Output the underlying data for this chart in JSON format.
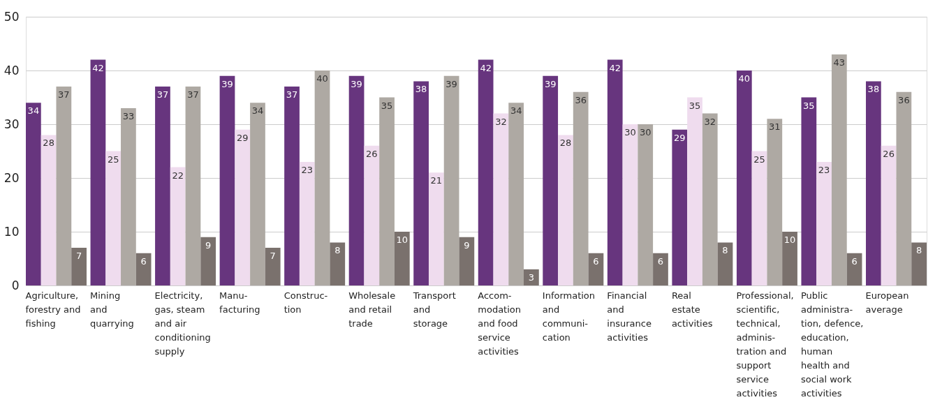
{
  "chart_data": {
    "type": "bar",
    "categories": [
      "Agriculture,\nforestry and\nfishing",
      "Mining\nand\nquarrying",
      "Electricity,\ngas, steam\nand air\nconditioning\nsupply",
      "Manu-\nfacturing",
      "Construc-\ntion",
      "Wholesale\nand retail\ntrade",
      "Transport\nand\nstorage",
      "Accom-\nmodation\nand food\nservice\nactivities",
      "Information\nand\ncommuni-\ncation",
      "Financial\nand\ninsurance\nactivities",
      "Real\nestate\nactivities",
      "Professional,\nscientific,\ntechnical,\nadminis-\ntration and\nsupport\nservice\nactivities",
      "Public\nadministra-\ntion, defence,\neducation,\nhuman\nhealth and\nsocial work\nactivities",
      "European\naverage"
    ],
    "series": [
      {
        "color": "#67357e",
        "values": [
          34,
          42,
          37,
          39,
          37,
          39,
          38,
          42,
          39,
          42,
          29,
          40,
          35,
          38
        ]
      },
      {
        "color": "#efdcee",
        "values": [
          28,
          25,
          22,
          29,
          23,
          26,
          21,
          32,
          28,
          30,
          35,
          25,
          23,
          26
        ]
      },
      {
        "color": "#aea9a3",
        "values": [
          37,
          33,
          37,
          34,
          40,
          35,
          39,
          34,
          36,
          30,
          32,
          31,
          43,
          36
        ]
      },
      {
        "color": "#7a716d",
        "values": [
          7,
          6,
          9,
          7,
          8,
          10,
          9,
          3,
          6,
          6,
          8,
          10,
          6,
          8
        ]
      }
    ],
    "ylim": [
      0,
      50
    ],
    "yticks": [
      0,
      10,
      20,
      30,
      40,
      50
    ],
    "grid": "y",
    "legend": false,
    "data_labels": true
  }
}
